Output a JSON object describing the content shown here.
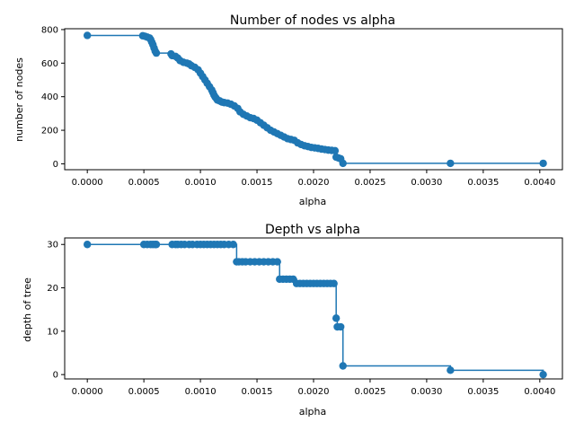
{
  "chart_data": [
    {
      "type": "line",
      "title": "Number of nodes vs alpha",
      "xlabel": "alpha",
      "ylabel": "number of nodes",
      "xlim": [
        -0.0002,
        0.0042
      ],
      "ylim": [
        -35,
        805
      ],
      "xticks": [
        "0.0000",
        "0.0005",
        "0.0010",
        "0.0015",
        "0.0020",
        "0.0025",
        "0.0030",
        "0.0035",
        "0.0040"
      ],
      "xtick_values": [
        0.0,
        0.0005,
        0.001,
        0.0015,
        0.002,
        0.0025,
        0.003,
        0.0035,
        0.004
      ],
      "yticks": [
        "0",
        "200",
        "400",
        "600",
        "800"
      ],
      "ytick_values": [
        0,
        200,
        400,
        600,
        800
      ],
      "drawstyle": "steps-post",
      "marker": "o",
      "color": "#1f77b4",
      "grid": false,
      "series": [
        {
          "x": [
            0.0,
            0.00049,
            0.00051,
            0.00053,
            0.00055,
            0.00056,
            0.00057,
            0.00058,
            0.00059,
            0.0006,
            0.00061,
            0.00074,
            0.00075,
            0.00078,
            0.0008,
            0.00082,
            0.00085,
            0.00088,
            0.0009,
            0.00092,
            0.00095,
            0.00098,
            0.001,
            0.00102,
            0.00104,
            0.00106,
            0.00108,
            0.0011,
            0.00111,
            0.00112,
            0.00113,
            0.00114,
            0.00115,
            0.00117,
            0.00119,
            0.00121,
            0.00124,
            0.00127,
            0.0013,
            0.00133,
            0.00135,
            0.00138,
            0.00141,
            0.00144,
            0.00147,
            0.0015,
            0.00153,
            0.00156,
            0.00159,
            0.00162,
            0.00165,
            0.00168,
            0.00171,
            0.00174,
            0.00177,
            0.0018,
            0.00183,
            0.00186,
            0.00189,
            0.00192,
            0.00195,
            0.00198,
            0.00201,
            0.00204,
            0.00207,
            0.0021,
            0.00213,
            0.00216,
            0.00219,
            0.0022,
            0.00222,
            0.00224,
            0.00226,
            0.00321,
            0.00403
          ],
          "y": [
            765,
            763,
            760,
            755,
            750,
            740,
            725,
            710,
            690,
            672,
            660,
            655,
            645,
            640,
            630,
            615,
            605,
            600,
            595,
            585,
            575,
            560,
            540,
            520,
            500,
            480,
            460,
            440,
            425,
            410,
            398,
            390,
            380,
            375,
            368,
            365,
            362,
            355,
            345,
            330,
            310,
            295,
            285,
            275,
            270,
            260,
            245,
            230,
            215,
            200,
            190,
            180,
            170,
            160,
            150,
            145,
            140,
            125,
            115,
            108,
            103,
            98,
            95,
            92,
            88,
            85,
            82,
            80,
            78,
            40,
            35,
            30,
            3,
            3,
            3
          ]
        }
      ]
    },
    {
      "type": "line",
      "title": "Depth vs alpha",
      "xlabel": "alpha",
      "ylabel": "depth of tree",
      "xlim": [
        -0.0002,
        0.0042
      ],
      "ylim": [
        -1.0,
        31.5
      ],
      "xticks": [
        "0.0000",
        "0.0005",
        "0.0010",
        "0.0015",
        "0.0020",
        "0.0025",
        "0.0030",
        "0.0035",
        "0.0040"
      ],
      "xtick_values": [
        0.0,
        0.0005,
        0.001,
        0.0015,
        0.002,
        0.0025,
        0.003,
        0.0035,
        0.004
      ],
      "yticks": [
        "0",
        "10",
        "20",
        "30"
      ],
      "ytick_values": [
        0,
        10,
        20,
        30
      ],
      "drawstyle": "steps-post",
      "marker": "o",
      "color": "#1f77b4",
      "grid": false,
      "series": [
        {
          "x": [
            0.0,
            0.0005,
            0.00053,
            0.00056,
            0.00058,
            0.0006,
            0.00061,
            0.00075,
            0.00078,
            0.0008,
            0.00083,
            0.00086,
            0.0009,
            0.00093,
            0.00097,
            0.001,
            0.00103,
            0.00106,
            0.00109,
            0.00112,
            0.00115,
            0.00118,
            0.00121,
            0.00125,
            0.00129,
            0.00132,
            0.00134,
            0.00137,
            0.0014,
            0.00144,
            0.00148,
            0.00152,
            0.00156,
            0.0016,
            0.00164,
            0.00168,
            0.0017,
            0.00173,
            0.00176,
            0.00179,
            0.00182,
            0.00185,
            0.00188,
            0.00191,
            0.00194,
            0.00197,
            0.002,
            0.00203,
            0.00206,
            0.00209,
            0.00212,
            0.00215,
            0.00218,
            0.0022,
            0.00221,
            0.00224,
            0.00226,
            0.00321,
            0.00403
          ],
          "y": [
            30,
            30,
            30,
            30,
            30,
            30,
            30,
            30,
            30,
            30,
            30,
            30,
            30,
            30,
            30,
            30,
            30,
            30,
            30,
            30,
            30,
            30,
            30,
            30,
            30,
            26,
            26,
            26,
            26,
            26,
            26,
            26,
            26,
            26,
            26,
            26,
            22,
            22,
            22,
            22,
            22,
            21,
            21,
            21,
            21,
            21,
            21,
            21,
            21,
            21,
            21,
            21,
            21,
            13,
            11,
            11,
            2,
            1,
            0
          ]
        }
      ]
    }
  ]
}
